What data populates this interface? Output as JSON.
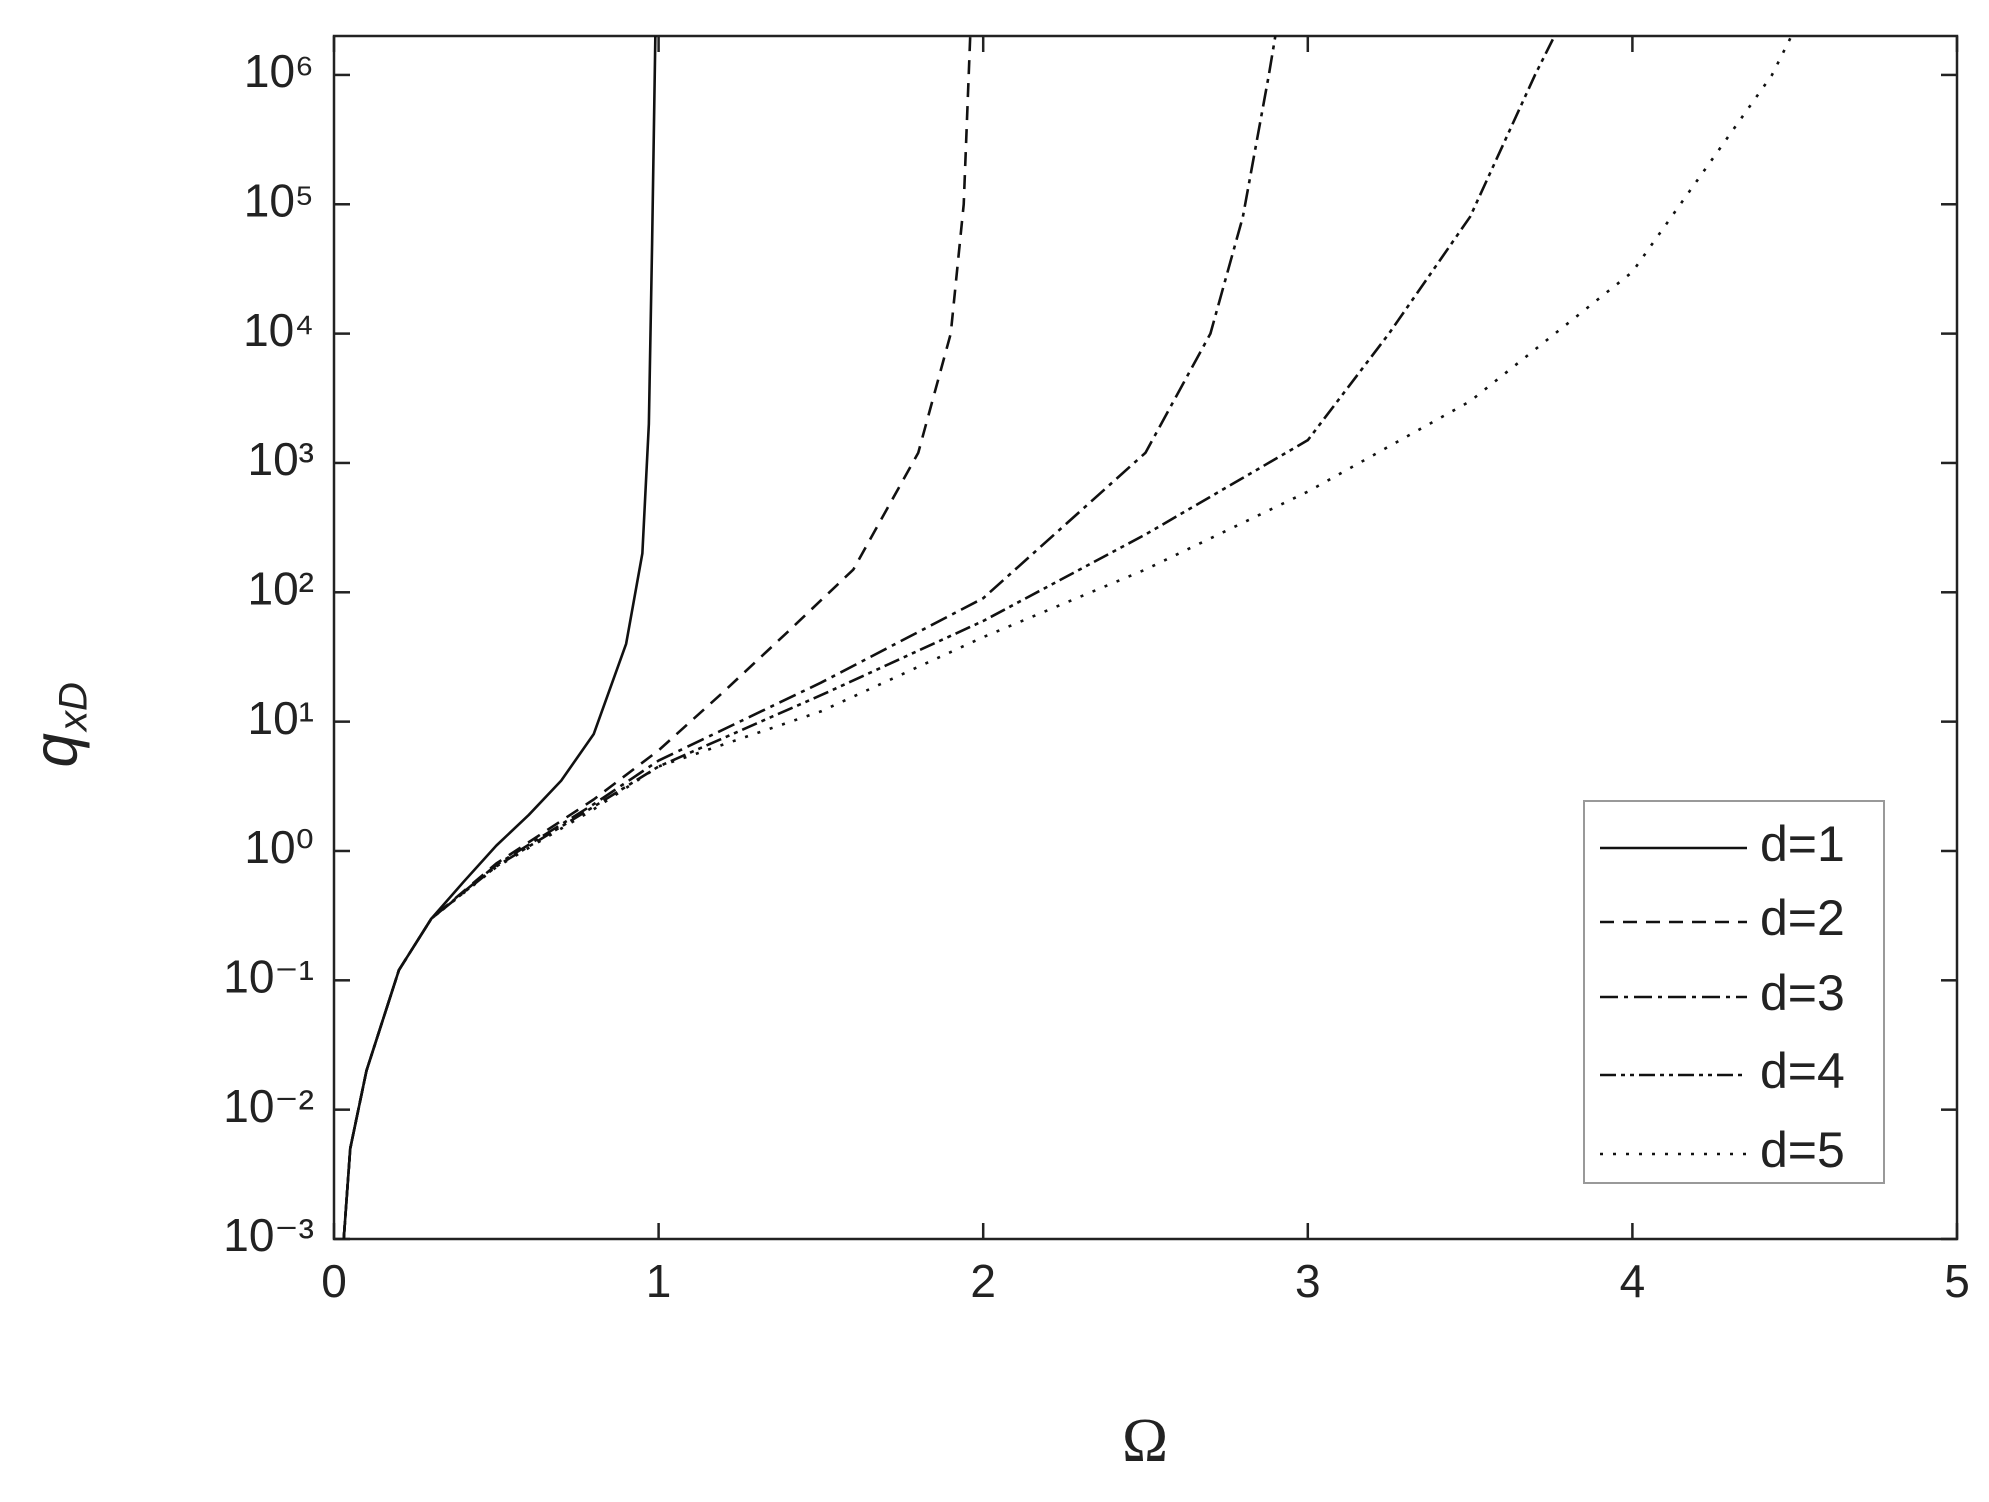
{
  "chart_data": {
    "type": "line",
    "xlabel": "Ω",
    "ylabel": "q",
    "ylabel_sub": "xD",
    "xlim": [
      0,
      5
    ],
    "xticks": [
      0,
      1,
      2,
      3,
      4,
      5
    ],
    "ylim": [
      0.001,
      2000000
    ],
    "yscale": "log",
    "yticks": [
      {
        "value": 0.001,
        "label": "10⁻³"
      },
      {
        "value": 0.01,
        "label": "10⁻²"
      },
      {
        "value": 0.1,
        "label": "10⁻¹"
      },
      {
        "value": 1,
        "label": "10⁰"
      },
      {
        "value": 10,
        "label": "10¹"
      },
      {
        "value": 100,
        "label": "10²"
      },
      {
        "value": 1000,
        "label": "10³"
      },
      {
        "value": 10000,
        "label": "10⁴"
      },
      {
        "value": 100000,
        "label": "10⁵"
      },
      {
        "value": 1000000,
        "label": "10⁶"
      }
    ],
    "grid": false,
    "legend": "lower right",
    "series": [
      {
        "name": "d=1",
        "color": "#111111",
        "dash": "none",
        "x": [
          0.03,
          0.05,
          0.1,
          0.2,
          0.3,
          0.4,
          0.5,
          0.6,
          0.7,
          0.8,
          0.9,
          0.95,
          0.97,
          0.98,
          0.99
        ],
        "values": [
          0.001,
          0.005,
          0.02,
          0.12,
          0.3,
          0.58,
          1.1,
          1.9,
          3.5,
          8,
          40,
          200,
          2000,
          50000,
          2000000
        ]
      },
      {
        "name": "d=2",
        "color": "#111111",
        "dash": "14,9",
        "x": [
          0.03,
          0.05,
          0.1,
          0.2,
          0.3,
          0.5,
          0.8,
          1.0,
          1.2,
          1.4,
          1.6,
          1.8,
          1.9,
          1.94,
          1.96
        ],
        "values": [
          0.001,
          0.005,
          0.02,
          0.12,
          0.3,
          0.8,
          2.5,
          6,
          17,
          50,
          150,
          1200,
          10000,
          100000,
          2000000
        ]
      },
      {
        "name": "d=3",
        "color": "#111111",
        "dash": "18,6,4,6",
        "x": [
          0.03,
          0.05,
          0.1,
          0.2,
          0.3,
          0.5,
          0.8,
          1.0,
          1.5,
          2.0,
          2.5,
          2.7,
          2.8,
          2.88,
          2.9
        ],
        "values": [
          0.001,
          0.005,
          0.02,
          0.12,
          0.3,
          0.78,
          2.3,
          5,
          20,
          90,
          1200,
          10000,
          80000,
          1000000,
          2000000
        ]
      },
      {
        "name": "d=4",
        "color": "#111111",
        "dash": "16,5,4,5,4,5",
        "x": [
          0.03,
          0.05,
          0.1,
          0.2,
          0.3,
          0.5,
          0.8,
          1.0,
          1.5,
          2.0,
          2.5,
          3.0,
          3.25,
          3.5,
          3.7,
          3.76
        ],
        "values": [
          0.001,
          0.005,
          0.02,
          0.12,
          0.3,
          0.76,
          2.2,
          4.5,
          16,
          60,
          280,
          1500,
          10000,
          80000,
          1000000,
          2000000
        ]
      },
      {
        "name": "d=5",
        "color": "#111111",
        "dash": "3,10",
        "x": [
          0.03,
          0.05,
          0.1,
          0.2,
          0.3,
          0.5,
          0.8,
          1.0,
          1.5,
          2.0,
          2.5,
          3.0,
          3.5,
          4.0,
          4.43,
          4.49
        ],
        "values": [
          0.001,
          0.005,
          0.02,
          0.12,
          0.3,
          0.75,
          2.1,
          4.5,
          12,
          45,
          150,
          600,
          3000,
          30000,
          1000000,
          2000000
        ]
      }
    ]
  }
}
